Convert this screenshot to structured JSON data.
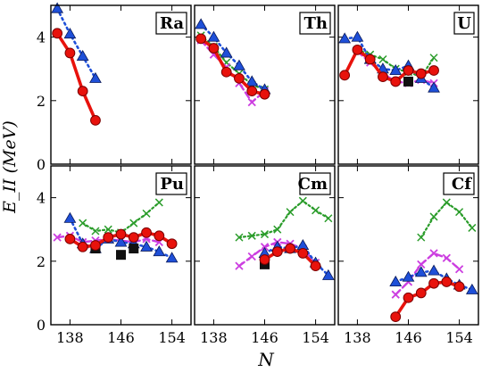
{
  "chart_data": {
    "type": "scatter",
    "layout": "2x3 grid of panels sharing axes",
    "xlabel": "N",
    "ylabel": "E_II (MeV)",
    "xlim": [
      135,
      157
    ],
    "ylim": [
      0,
      5
    ],
    "xticks": [
      138,
      146,
      154
    ],
    "yticks": [
      0,
      2,
      4
    ],
    "grid": false,
    "colors": {
      "red_line": "#e8120c",
      "red_marker_edge": "#7a0000",
      "blue": "#1e4fd8",
      "blue_edge": "#0a1a5a",
      "magenta": "#cc3ee0",
      "green": "#2a9c2a",
      "black": "#111111"
    },
    "panels": [
      {
        "label": "Ra",
        "series": [
          {
            "style": "red-circle-solid",
            "x": [
              136,
              138,
              140,
              142
            ],
            "y": [
              4.12,
              3.5,
              2.3,
              1.38
            ]
          },
          {
            "style": "blue-triangle-dotted",
            "x": [
              136,
              138,
              140,
              142
            ],
            "y": [
              4.9,
              4.1,
              3.4,
              2.7
            ]
          }
        ]
      },
      {
        "label": "Th",
        "series": [
          {
            "style": "red-circle-solid",
            "x": [
              136,
              138,
              140,
              142,
              144,
              146
            ],
            "y": [
              3.95,
              3.65,
              2.9,
              2.7,
              2.3,
              2.2
            ]
          },
          {
            "style": "blue-triangle-dotted",
            "x": [
              136,
              138,
              140,
              142,
              144,
              146
            ],
            "y": [
              4.4,
              4.0,
              3.5,
              3.1,
              2.6,
              2.35
            ]
          },
          {
            "style": "magenta-x-dashed",
            "x": [
              136,
              138,
              140,
              142,
              144,
              146
            ],
            "y": [
              3.9,
              3.45,
              3.05,
              2.55,
              1.95,
              2.3
            ]
          },
          {
            "style": "green-plus-dotted",
            "x": [
              136,
              138,
              140,
              142,
              144,
              146
            ],
            "y": [
              4.05,
              3.7,
              3.2,
              2.85,
              2.5,
              2.35
            ]
          }
        ]
      },
      {
        "label": "U",
        "series": [
          {
            "style": "red-circle-solid",
            "x": [
              136,
              138,
              140,
              142,
              144,
              146,
              148,
              150
            ],
            "y": [
              2.8,
              3.6,
              3.3,
              2.75,
              2.6,
              2.95,
              2.85,
              2.95
            ]
          },
          {
            "style": "blue-triangle-dotted",
            "x": [
              136,
              138,
              140,
              142,
              144,
              146,
              148,
              150
            ],
            "y": [
              3.95,
              4.0,
              3.3,
              3.0,
              2.95,
              3.1,
              2.7,
              2.4
            ]
          },
          {
            "style": "magenta-x-dashed",
            "x": [
              138,
              140,
              142,
              144,
              146,
              148,
              150
            ],
            "y": [
              3.55,
              3.2,
              2.85,
              2.6,
              2.55,
              2.65,
              2.55
            ]
          },
          {
            "style": "green-plus-dotted",
            "x": [
              138,
              140,
              142,
              144,
              146,
              148,
              150
            ],
            "y": [
              3.6,
              3.45,
              3.3,
              3.0,
              2.9,
              2.75,
              3.35
            ]
          },
          {
            "style": "black-square",
            "x": [
              146
            ],
            "y": [
              2.6
            ]
          }
        ]
      },
      {
        "label": "Pu",
        "series": [
          {
            "style": "red-circle-solid",
            "x": [
              138,
              140,
              142,
              144,
              146,
              148,
              150,
              152,
              154
            ],
            "y": [
              2.7,
              2.45,
              2.5,
              2.75,
              2.85,
              2.75,
              2.9,
              2.8,
              2.55
            ]
          },
          {
            "style": "blue-triangle-dotted",
            "x": [
              138,
              140,
              142,
              144,
              146,
              148,
              150,
              152,
              154
            ],
            "y": [
              3.35,
              2.55,
              2.4,
              2.7,
              2.6,
              2.55,
              2.45,
              2.3,
              2.1
            ]
          },
          {
            "style": "magenta-x-dashed",
            "x": [
              136,
              138,
              140,
              142,
              144,
              146,
              148,
              150,
              152
            ],
            "y": [
              2.75,
              2.8,
              2.6,
              2.65,
              2.7,
              2.65,
              2.6,
              2.7,
              2.6
            ]
          },
          {
            "style": "green-plus-dotted",
            "x": [
              140,
              142,
              144,
              146,
              148,
              150,
              152
            ],
            "y": [
              3.2,
              2.95,
              3.0,
              2.9,
              3.2,
              3.5,
              3.85
            ]
          },
          {
            "style": "black-square",
            "x": [
              142,
              146,
              148
            ],
            "y": [
              2.4,
              2.2,
              2.4
            ]
          }
        ]
      },
      {
        "label": "Cm",
        "series": [
          {
            "style": "red-circle-solid",
            "x": [
              146,
              148,
              150,
              152,
              154
            ],
            "y": [
              2.05,
              2.3,
              2.4,
              2.25,
              1.85
            ]
          },
          {
            "style": "blue-triangle-dotted",
            "x": [
              146,
              148,
              150,
              152,
              154,
              156
            ],
            "y": [
              2.25,
              2.45,
              2.4,
              2.5,
              1.95,
              1.55
            ]
          },
          {
            "style": "magenta-x-dashed",
            "x": [
              142,
              144,
              146,
              148,
              150,
              152,
              154
            ],
            "y": [
              1.85,
              2.15,
              2.45,
              2.6,
              2.55,
              2.4,
              1.95
            ]
          },
          {
            "style": "green-plus-dotted",
            "x": [
              142,
              144,
              146,
              148,
              150,
              152,
              154,
              156
            ],
            "y": [
              2.75,
              2.8,
              2.85,
              3.0,
              3.55,
              3.9,
              3.6,
              3.35
            ]
          },
          {
            "style": "black-square",
            "x": [
              146
            ],
            "y": [
              1.9
            ]
          }
        ]
      },
      {
        "label": "Cf",
        "series": [
          {
            "style": "red-circle-solid",
            "x": [
              144,
              146,
              148,
              150,
              152,
              154
            ],
            "y": [
              0.25,
              0.85,
              1.0,
              1.3,
              1.35,
              1.2
            ]
          },
          {
            "style": "blue-triangle-dotted",
            "x": [
              144,
              146,
              148,
              150,
              152,
              154,
              156
            ],
            "y": [
              1.35,
              1.5,
              1.65,
              1.7,
              1.45,
              1.25,
              1.1
            ]
          },
          {
            "style": "magenta-x-dashed",
            "x": [
              144,
              146,
              148,
              150,
              152,
              154
            ],
            "y": [
              0.95,
              1.35,
              1.9,
              2.25,
              2.1,
              1.75
            ]
          },
          {
            "style": "green-plus-dotted",
            "x": [
              148,
              150,
              152,
              154,
              156
            ],
            "y": [
              2.75,
              3.4,
              3.85,
              3.55,
              3.05
            ]
          }
        ]
      }
    ]
  }
}
